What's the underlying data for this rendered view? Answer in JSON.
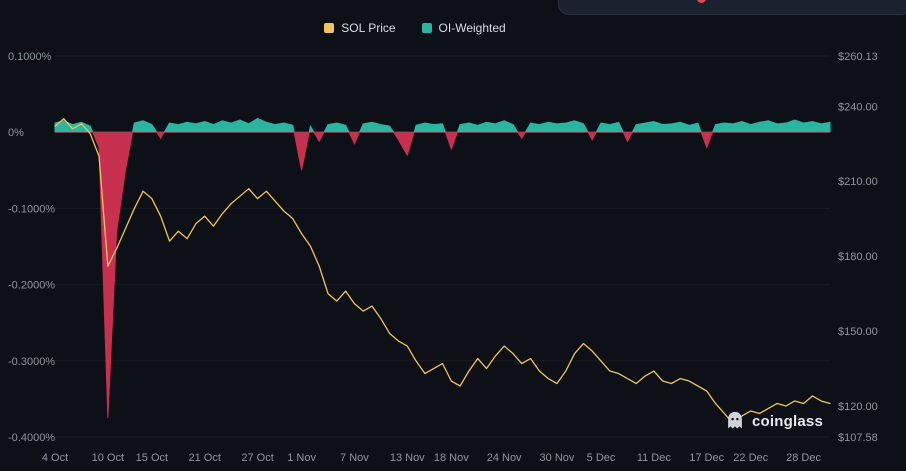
{
  "topbar": {
    "badge_color": "#E5484D"
  },
  "legend": {
    "items": [
      {
        "label": "SOL Price",
        "color": "#F2C45A"
      },
      {
        "label": "OI-Weighted",
        "color": "#2BB5A0"
      }
    ]
  },
  "watermark": {
    "label": "coinglass"
  },
  "chart_data": {
    "type": "line",
    "title": "",
    "xlabel": "",
    "ylabel_left": "OI-Weighted funding rate (%)",
    "ylabel_right": "SOL Price (USD)",
    "grid": "faint-horizontal",
    "legend_position": "top-center",
    "left_axis": {
      "ticks": [
        "0.1000%",
        "0%",
        "-0.1000%",
        "-0.2000%",
        "-0.3000%",
        "-0.4000%"
      ],
      "tick_values": [
        0.1,
        0,
        -0.1,
        -0.2,
        -0.3,
        -0.4
      ],
      "range": [
        -0.4,
        0.1
      ]
    },
    "right_axis": {
      "ticks": [
        "$260.13",
        "$240.00",
        "$210.00",
        "$180.00",
        "$150.00",
        "$120.00",
        "$107.58"
      ],
      "tick_values": [
        260.13,
        240,
        210,
        180,
        150,
        120,
        107.58
      ],
      "range": [
        107.58,
        260.13
      ]
    },
    "x_ticks": {
      "indices": [
        0,
        6,
        11,
        17,
        23,
        28,
        34,
        40,
        45,
        51,
        57,
        62,
        68,
        74,
        79,
        85
      ],
      "labels": [
        "4 Oct",
        "10 Oct",
        "15 Oct",
        "21 Oct",
        "27 Oct",
        "1 Nov",
        "7 Nov",
        "13 Nov",
        "18 Nov",
        "24 Nov",
        "30 Nov",
        "5 Dec",
        "11 Dec",
        "17 Dec",
        "22 Dec",
        "28 Dec"
      ]
    },
    "dates": [
      "4 Oct",
      "5 Oct",
      "6 Oct",
      "7 Oct",
      "8 Oct",
      "9 Oct",
      "10 Oct",
      "11 Oct",
      "12 Oct",
      "13 Oct",
      "14 Oct",
      "15 Oct",
      "16 Oct",
      "17 Oct",
      "18 Oct",
      "19 Oct",
      "20 Oct",
      "21 Oct",
      "22 Oct",
      "23 Oct",
      "24 Oct",
      "25 Oct",
      "26 Oct",
      "27 Oct",
      "28 Oct",
      "29 Oct",
      "30 Oct",
      "31 Oct",
      "1 Nov",
      "2 Nov",
      "3 Nov",
      "4 Nov",
      "5 Nov",
      "6 Nov",
      "7 Nov",
      "8 Nov",
      "9 Nov",
      "10 Nov",
      "11 Nov",
      "12 Nov",
      "13 Nov",
      "14 Nov",
      "15 Nov",
      "16 Nov",
      "17 Nov",
      "18 Nov",
      "19 Nov",
      "20 Nov",
      "21 Nov",
      "22 Nov",
      "23 Nov",
      "24 Nov",
      "25 Nov",
      "26 Nov",
      "27 Nov",
      "28 Nov",
      "29 Nov",
      "30 Nov",
      "1 Dec",
      "2 Dec",
      "3 Dec",
      "4 Dec",
      "5 Dec",
      "6 Dec",
      "7 Dec",
      "8 Dec",
      "9 Dec",
      "10 Dec",
      "11 Dec",
      "12 Dec",
      "13 Dec",
      "14 Dec",
      "15 Dec",
      "16 Dec",
      "17 Dec",
      "18 Dec",
      "19 Dec",
      "20 Dec",
      "21 Dec",
      "22 Dec",
      "23 Dec",
      "24 Dec",
      "25 Dec",
      "26 Dec",
      "27 Dec",
      "28 Dec",
      "29 Dec",
      "30 Dec",
      "31 Dec"
    ],
    "series": [
      {
        "name": "SOL Price",
        "type": "line",
        "axis": "right",
        "color": "#F2C45A",
        "values": [
          232,
          235,
          231,
          233,
          229,
          220,
          176,
          183,
          191,
          199,
          206,
          203,
          196,
          186,
          190,
          187,
          193,
          196,
          192,
          197,
          201,
          204,
          207,
          203,
          206,
          202,
          198,
          195,
          189,
          184,
          176,
          165,
          162,
          166,
          161,
          158,
          160,
          155,
          149,
          146,
          144,
          138,
          133,
          135,
          137,
          130,
          128,
          134,
          139,
          135,
          140,
          144,
          141,
          137,
          139,
          134,
          131,
          129,
          134,
          141,
          145,
          142,
          138,
          134,
          133,
          131,
          129,
          132,
          134,
          130,
          129,
          131,
          130,
          128,
          126,
          121,
          117,
          113,
          116,
          118,
          117,
          119,
          121,
          120,
          122,
          121,
          124,
          122,
          121
        ]
      },
      {
        "name": "OI-Weighted",
        "type": "area",
        "axis": "left",
        "color_pos": "#2BB5A0",
        "color_neg": "#C7304F",
        "values": [
          0.012,
          0.015,
          0.01,
          0.013,
          0.008,
          -0.02,
          -0.375,
          -0.13,
          -0.05,
          0.012,
          0.015,
          0.01,
          -0.008,
          0.012,
          0.01,
          0.013,
          0.011,
          0.014,
          0.01,
          0.015,
          0.012,
          0.016,
          0.011,
          0.018,
          0.013,
          0.01,
          0.012,
          0.009,
          -0.05,
          0.008,
          -0.012,
          0.01,
          0.012,
          0.009,
          -0.015,
          0.011,
          0.013,
          0.01,
          0.008,
          -0.01,
          -0.03,
          0.009,
          0.012,
          0.01,
          0.011,
          -0.022,
          0.01,
          0.012,
          0.009,
          0.013,
          0.011,
          0.015,
          0.01,
          -0.008,
          0.012,
          0.01,
          0.013,
          0.011,
          0.012,
          0.015,
          0.011,
          -0.01,
          0.012,
          0.01,
          0.013,
          -0.012,
          0.01,
          0.012,
          0.014,
          0.01,
          0.011,
          0.013,
          0.009,
          0.012,
          -0.02,
          0.01,
          0.012,
          0.011,
          0.014,
          0.01,
          0.013,
          0.015,
          0.011,
          0.012,
          0.016,
          0.012,
          0.014,
          0.011,
          0.013
        ]
      }
    ]
  }
}
